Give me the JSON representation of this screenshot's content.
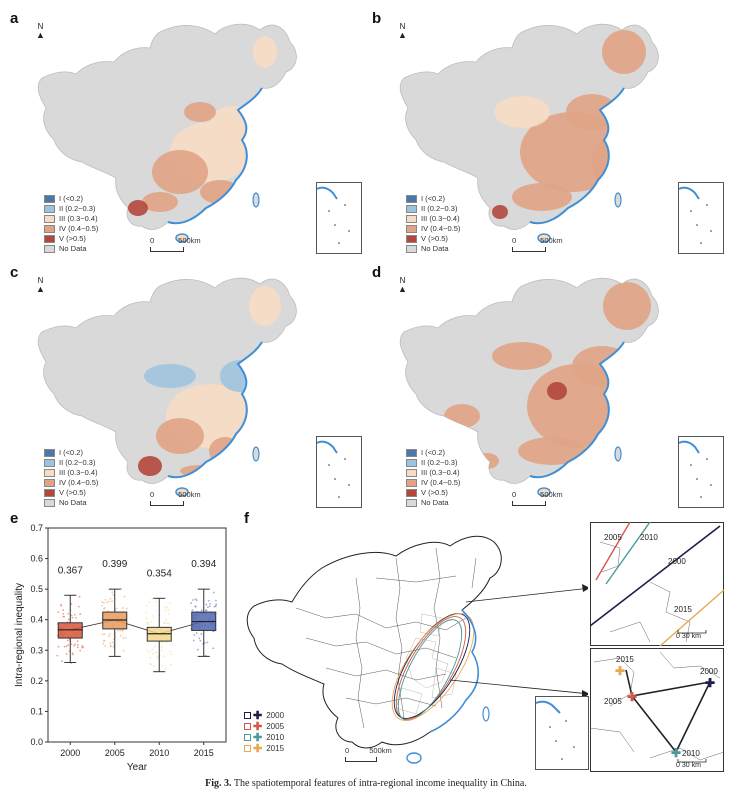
{
  "panels": {
    "a": {
      "label": "a"
    },
    "b": {
      "label": "b"
    },
    "c": {
      "label": "c"
    },
    "d": {
      "label": "d"
    },
    "e": {
      "label": "e"
    },
    "f": {
      "label": "f"
    }
  },
  "north_label": "N",
  "legend": [
    {
      "label": "I (<0.2)",
      "color": "#4a78a8"
    },
    {
      "label": "II (0.2~0.3)",
      "color": "#9ec3dc"
    },
    {
      "label": "III (0.3~0.4)",
      "color": "#f6dcc4"
    },
    {
      "label": "IV (0.4~0.5)",
      "color": "#e0a385"
    },
    {
      "label": "V (>0.5)",
      "color": "#b3473c"
    },
    {
      "label": "No Data",
      "color": "#d9d9d9"
    }
  ],
  "scale_labels": {
    "zero": "0",
    "map": "500km",
    "zoom": "30 km"
  },
  "chart_data": {
    "type": "box",
    "categories": [
      "2000",
      "2005",
      "2010",
      "2015"
    ],
    "medians": [
      0.367,
      0.399,
      0.354,
      0.394
    ],
    "median_labels": [
      "0.367",
      "0.399",
      "0.354",
      "0.394"
    ],
    "q1": [
      0.34,
      0.37,
      0.33,
      0.365
    ],
    "q3": [
      0.39,
      0.425,
      0.375,
      0.425
    ],
    "whisker_low": [
      0.26,
      0.28,
      0.23,
      0.28
    ],
    "whisker_high": [
      0.48,
      0.5,
      0.47,
      0.5
    ],
    "colors": [
      "#d9553a",
      "#e89a5c",
      "#f4d78a",
      "#4f66b0"
    ],
    "ylim": [
      0.0,
      0.7
    ],
    "yticks": [
      "0.0",
      "0.1",
      "0.2",
      "0.3",
      "0.4",
      "0.5",
      "0.6",
      "0.7"
    ],
    "xlabel": "Year",
    "ylabel": "Intra-regional inequality"
  },
  "centroid_legend": [
    {
      "label": "2000",
      "color": "#1c1f4a"
    },
    {
      "label": "2005",
      "color": "#d2584a"
    },
    {
      "label": "2010",
      "color": "#4b9a9a"
    },
    {
      "label": "2015",
      "color": "#e7a850"
    }
  ],
  "zoom_top_labels": [
    "2005",
    "2010",
    "2000",
    "2015"
  ],
  "zoom_bottom_labels": [
    "2015",
    "2000",
    "2005",
    "2010"
  ],
  "caption": {
    "fig": "Fig. 3.",
    "text": "The spatiotemporal features of intra-regional income inequality in China."
  }
}
